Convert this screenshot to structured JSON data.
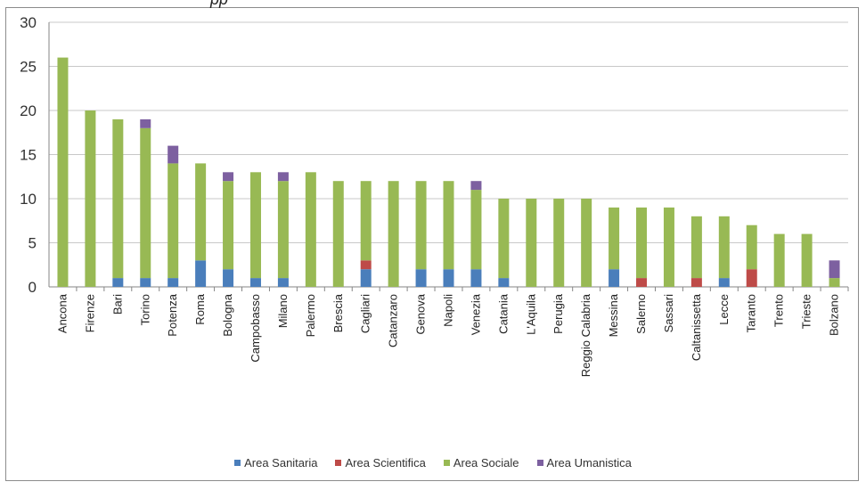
{
  "chart_data": {
    "type": "bar",
    "stacked": true,
    "title": "",
    "xlabel": "",
    "ylabel": "",
    "ylim": [
      0,
      30
    ],
    "yticks": [
      "0",
      "5",
      "10",
      "15",
      "20",
      "25",
      "30"
    ],
    "grid": true,
    "legend_position": "bottom",
    "categories": [
      "Ancona",
      "Firenze",
      "Bari",
      "Torino",
      "Potenza",
      "Roma",
      "Bologna",
      "Campobasso",
      "Milano",
      "Palermo",
      "Brescia",
      "Cagliari",
      "Catanzaro",
      "Genova",
      "Napoli",
      "Venezia",
      "Catania",
      "L'Aquila",
      "Perugia",
      "Reggio Calabria",
      "Messina",
      "Salerno",
      "Sassari",
      "Caltanissetta",
      "Lecce",
      "Taranto",
      "Trento",
      "Trieste",
      "Bolzano"
    ],
    "series": [
      {
        "name": "Area Sanitaria",
        "color": "#4a7ebb",
        "values": [
          0,
          0,
          1,
          1,
          1,
          3,
          2,
          1,
          1,
          0,
          0,
          2,
          0,
          2,
          2,
          2,
          1,
          0,
          0,
          0,
          2,
          0,
          0,
          0,
          1,
          0,
          0,
          0,
          0
        ]
      },
      {
        "name": "Area Scientifica",
        "color": "#be4b48",
        "values": [
          0,
          0,
          0,
          0,
          0,
          0,
          0,
          0,
          0,
          0,
          0,
          1,
          0,
          0,
          0,
          0,
          0,
          0,
          0,
          0,
          0,
          1,
          0,
          1,
          0,
          2,
          0,
          0,
          0
        ]
      },
      {
        "name": "Area Sociale",
        "color": "#98b954",
        "values": [
          26,
          20,
          18,
          17,
          13,
          11,
          10,
          12,
          11,
          13,
          12,
          9,
          12,
          10,
          10,
          9,
          9,
          10,
          10,
          10,
          7,
          8,
          9,
          7,
          7,
          5,
          6,
          6,
          1
        ]
      },
      {
        "name": "Area Umanistica",
        "color": "#7d60a0",
        "values": [
          0,
          0,
          0,
          1,
          2,
          0,
          1,
          0,
          1,
          0,
          0,
          0,
          0,
          0,
          0,
          1,
          0,
          0,
          0,
          0,
          0,
          0,
          0,
          0,
          0,
          0,
          0,
          0,
          2
        ]
      }
    ]
  }
}
